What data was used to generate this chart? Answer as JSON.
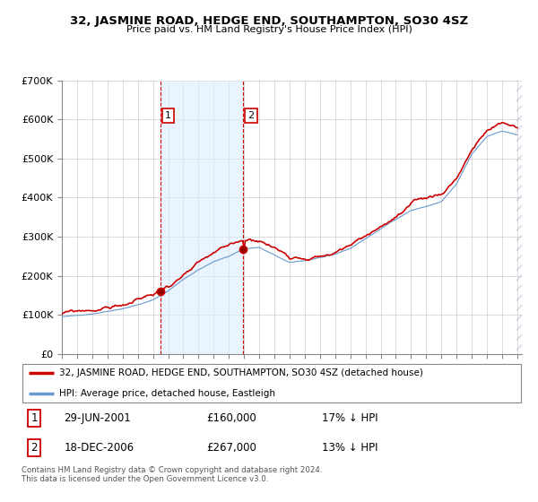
{
  "title": "32, JASMINE ROAD, HEDGE END, SOUTHAMPTON, SO30 4SZ",
  "subtitle": "Price paid vs. HM Land Registry's House Price Index (HPI)",
  "legend_line1": "32, JASMINE ROAD, HEDGE END, SOUTHAMPTON, SO30 4SZ (detached house)",
  "legend_line2": "HPI: Average price, detached house, Eastleigh",
  "transaction1_date": "29-JUN-2001",
  "transaction1_price": "£160,000",
  "transaction1_hpi": "17% ↓ HPI",
  "transaction2_date": "18-DEC-2006",
  "transaction2_price": "£267,000",
  "transaction2_hpi": "13% ↓ HPI",
  "footnote": "Contains HM Land Registry data © Crown copyright and database right 2024.\nThis data is licensed under the Open Government Licence v3.0.",
  "line_color_red": "#cc0000",
  "line_color_blue": "#6699cc",
  "shade_color": "#ddeeff",
  "vline_color": "#cc0000",
  "background_color": "#ffffff",
  "ylim": [
    0,
    700000
  ],
  "yticks": [
    0,
    100000,
    200000,
    300000,
    400000,
    500000,
    600000,
    700000
  ],
  "transaction1_x": 2001.49,
  "transaction1_y": 160000,
  "transaction2_x": 2006.96,
  "transaction2_y": 267000,
  "vline1_x": 2001.49,
  "vline2_x": 2006.96,
  "xlim_left": 1995.0,
  "xlim_right": 2025.3,
  "xticks": [
    1995,
    1996,
    1997,
    1998,
    1999,
    2000,
    2001,
    2002,
    2003,
    2004,
    2005,
    2006,
    2007,
    2008,
    2009,
    2010,
    2011,
    2012,
    2013,
    2014,
    2015,
    2016,
    2017,
    2018,
    2019,
    2020,
    2021,
    2022,
    2023,
    2024,
    2025
  ]
}
